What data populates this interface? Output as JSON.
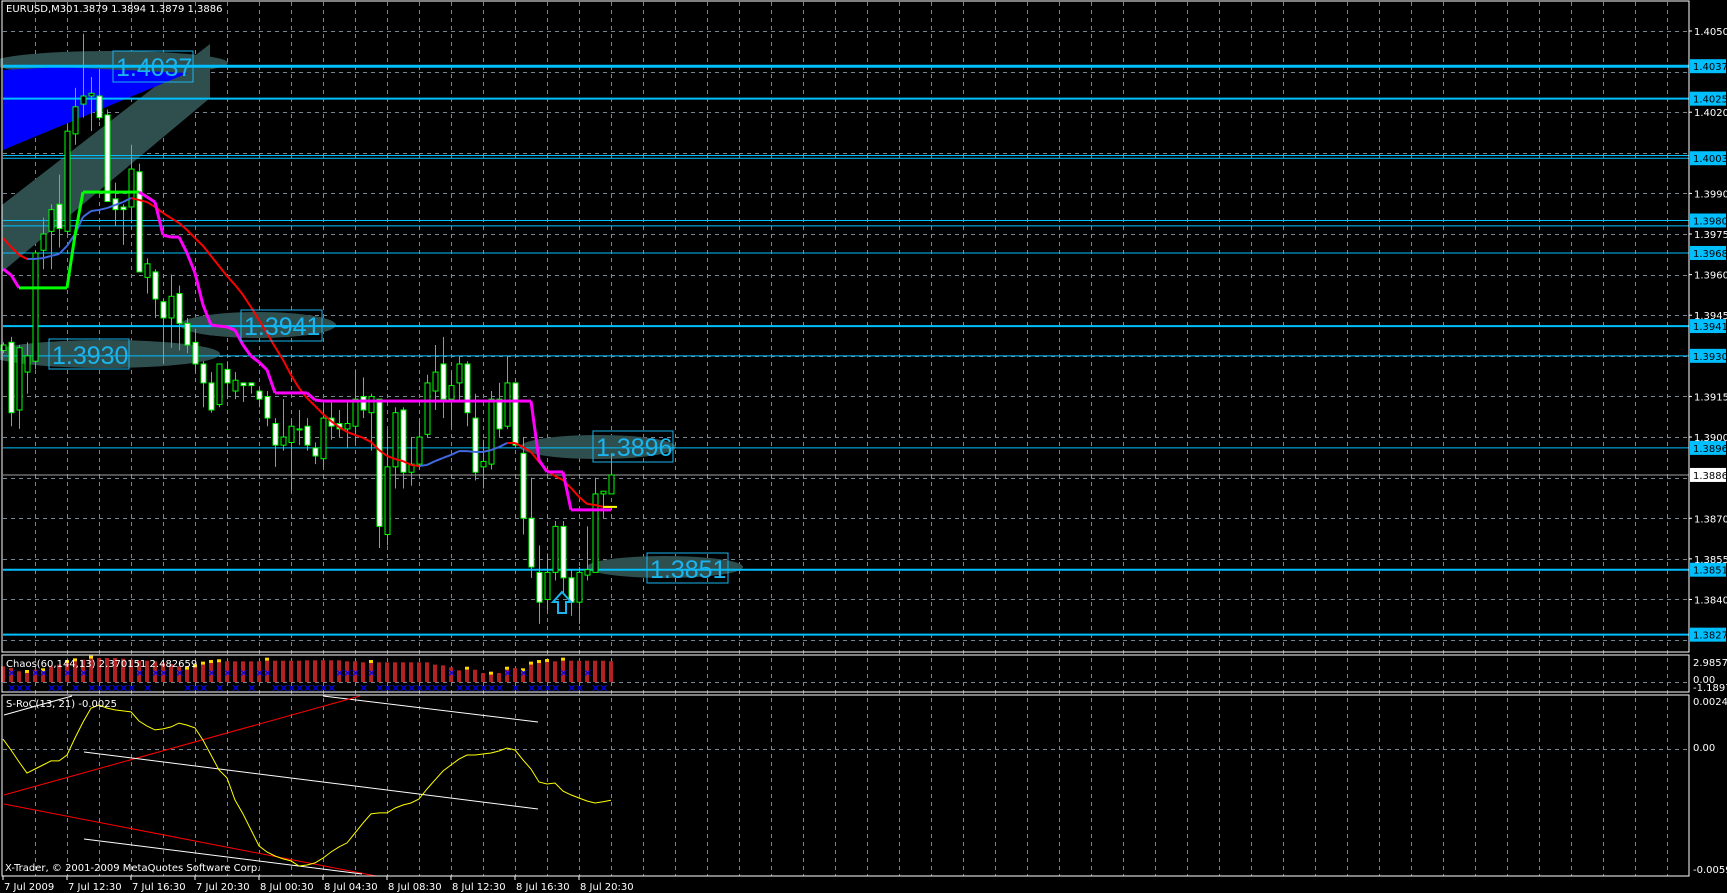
{
  "header": {
    "symbol": "EURUSD,M30",
    "ohlc": "1.3879 1.3894 1.3879 1.3886"
  },
  "colors": {
    "background": "#000000",
    "grid": "#7a8894",
    "level_line": "#00BFFF",
    "bull_wick": "#00FF00",
    "bear_body": "#FFFFFF",
    "ma_up": "#4169E1",
    "ma_down": "#FF0000",
    "step_up": "#00FF00",
    "step_down": "#FF00FF",
    "zone": "#2F4F4F",
    "fill_zone": "#0000FF",
    "chaos_bar": "#B22222",
    "chaos_signal": "#0000FF",
    "chaos_mark": "#FFD700",
    "sroc_line": "#FFFF00"
  },
  "price_axis": {
    "labels": [
      "1.4050",
      "1.4020",
      "1.3990",
      "1.3975",
      "1.3960",
      "1.3945",
      "1.3915",
      "1.3900",
      "1.3870",
      "1.3855",
      "1.3840"
    ]
  },
  "levels": [
    {
      "price": "1.4037",
      "label": "1.4037"
    },
    {
      "price": "1.4025",
      "label": "1.4025"
    },
    {
      "price": "1.4003",
      "label": "1.4003"
    },
    {
      "price": "1.3980",
      "label": "1.3980"
    },
    {
      "price": "1.3968",
      "label": "1.3968"
    },
    {
      "price": "1.3941",
      "label": "1.3941"
    },
    {
      "price": "1.3930",
      "label": "1.3930"
    },
    {
      "price": "1.3896",
      "label": "1.3896"
    },
    {
      "price": "1.3851",
      "label": "1.3851"
    },
    {
      "price": "1.3827",
      "label": "1.3827"
    }
  ],
  "bid": {
    "price": "1.3886",
    "label": "1.3886"
  },
  "chart_labels": [
    "1.4037",
    "1.3930",
    "1.3941",
    "1.3896",
    "1.3851"
  ],
  "candles": [
    [
      1.3932,
      1.3935,
      1.3931,
      1.3934
    ],
    [
      1.3935,
      1.3937,
      1.3904,
      1.3909
    ],
    [
      1.391,
      1.3934,
      1.3903,
      1.3933
    ],
    [
      1.3924,
      1.3935,
      1.3916,
      1.393
    ],
    [
      1.3928,
      1.3969,
      1.3925,
      1.3968
    ],
    [
      1.3969,
      1.3981,
      1.3962,
      1.3975
    ],
    [
      1.3976,
      1.3986,
      1.3962,
      1.3984
    ],
    [
      1.3986,
      1.3997,
      1.397,
      1.3977
    ],
    [
      1.3976,
      1.4015,
      1.3975,
      1.4013
    ],
    [
      1.4012,
      1.4029,
      1.4008,
      1.4022
    ],
    [
      1.4023,
      1.4049,
      1.4018,
      1.4026
    ],
    [
      1.4026,
      1.4033,
      1.4013,
      1.4027
    ],
    [
      1.4026,
      1.4036,
      1.4017,
      1.4018
    ],
    [
      1.4019,
      1.4021,
      1.3987,
      1.3987
    ],
    [
      1.3988,
      1.3994,
      1.3978,
      1.3984
    ],
    [
      1.3985,
      1.3986,
      1.3971,
      1.3984
    ],
    [
      1.3985,
      1.4008,
      1.3979,
      1.3999
    ],
    [
      1.3998,
      1.4001,
      1.3961,
      1.3961
    ],
    [
      1.3959,
      1.3966,
      1.3953,
      1.3964
    ],
    [
      1.3961,
      1.3962,
      1.3944,
      1.3951
    ],
    [
      1.395,
      1.3951,
      1.3927,
      1.3944
    ],
    [
      1.3944,
      1.396,
      1.3933,
      1.3952
    ],
    [
      1.3953,
      1.3956,
      1.3932,
      1.3942
    ],
    [
      1.3942,
      1.3944,
      1.3931,
      1.3934
    ],
    [
      1.3935,
      1.394,
      1.3924,
      1.3927
    ],
    [
      1.3927,
      1.3928,
      1.3911,
      1.392
    ],
    [
      1.392,
      1.3924,
      1.3909,
      1.391
    ],
    [
      1.3912,
      1.3927,
      1.3911,
      1.3927
    ],
    [
      1.3925,
      1.3928,
      1.3914,
      1.392
    ],
    [
      1.3917,
      1.3924,
      1.3914,
      1.3921
    ],
    [
      1.392,
      1.392,
      1.3913,
      1.3919
    ],
    [
      1.392,
      1.392,
      1.3916,
      1.3919
    ],
    [
      1.3917,
      1.3918,
      1.3911,
      1.3914
    ],
    [
      1.3915,
      1.3917,
      1.3904,
      1.3907
    ],
    [
      1.3905,
      1.3907,
      1.3889,
      1.3897
    ],
    [
      1.3897,
      1.3914,
      1.3895,
      1.39
    ],
    [
      1.3898,
      1.3906,
      1.388,
      1.3904
    ],
    [
      1.3903,
      1.391,
      1.3897,
      1.3903
    ],
    [
      1.3904,
      1.3907,
      1.3895,
      1.3897
    ],
    [
      1.3896,
      1.3898,
      1.389,
      1.3893
    ],
    [
      1.3892,
      1.3913,
      1.3889,
      1.3907
    ],
    [
      1.3907,
      1.3913,
      1.3899,
      1.3904
    ],
    [
      1.3905,
      1.391,
      1.39,
      1.3903
    ],
    [
      1.3903,
      1.3913,
      1.3896,
      1.3905
    ],
    [
      1.3904,
      1.3925,
      1.3898,
      1.3914
    ],
    [
      1.3915,
      1.3922,
      1.3907,
      1.391
    ],
    [
      1.3909,
      1.3916,
      1.3895,
      1.3915
    ],
    [
      1.3914,
      1.3914,
      1.3859,
      1.3867
    ],
    [
      1.3864,
      1.3903,
      1.386,
      1.3889
    ],
    [
      1.3889,
      1.3911,
      1.3881,
      1.3909
    ],
    [
      1.391,
      1.3911,
      1.3881,
      1.3887
    ],
    [
      1.3887,
      1.39,
      1.3882,
      1.389
    ],
    [
      1.389,
      1.3907,
      1.3888,
      1.39
    ],
    [
      1.3901,
      1.3923,
      1.39,
      1.392
    ],
    [
      1.3917,
      1.3934,
      1.391,
      1.3924
    ],
    [
      1.3927,
      1.3937,
      1.3907,
      1.3914
    ],
    [
      1.3914,
      1.3924,
      1.3904,
      1.3919
    ],
    [
      1.392,
      1.393,
      1.3913,
      1.3927
    ],
    [
      1.3927,
      1.3928,
      1.3904,
      1.3909
    ],
    [
      1.3907,
      1.3916,
      1.3884,
      1.3887
    ],
    [
      1.3889,
      1.3899,
      1.3881,
      1.3891
    ],
    [
      1.389,
      1.3917,
      1.3888,
      1.3914
    ],
    [
      1.3914,
      1.392,
      1.39,
      1.3903
    ],
    [
      1.3904,
      1.393,
      1.3903,
      1.392
    ],
    [
      1.392,
      1.392,
      1.3896,
      1.3897
    ],
    [
      1.3894,
      1.39,
      1.3864,
      1.387
    ],
    [
      1.387,
      1.3885,
      1.3848,
      1.3852
    ],
    [
      1.385,
      1.386,
      1.3831,
      1.3839
    ],
    [
      1.384,
      1.3857,
      1.3836,
      1.385
    ],
    [
      1.385,
      1.3869,
      1.3847,
      1.3867
    ],
    [
      1.3867,
      1.3869,
      1.3842,
      1.3848
    ],
    [
      1.3848,
      1.3851,
      1.3834,
      1.3839
    ],
    [
      1.3839,
      1.3852,
      1.3831,
      1.385
    ],
    [
      1.3849,
      1.3867,
      1.3847,
      1.3851
    ],
    [
      1.385,
      1.3885,
      1.385,
      1.3879
    ],
    [
      1.3879,
      1.388,
      1.387,
      1.388
    ],
    [
      1.3879,
      1.3894,
      1.3879,
      1.3886
    ]
  ],
  "moving_average": [
    1.39735,
    1.39702,
    1.39673,
    1.39658,
    1.39658,
    1.39661,
    1.39669,
    1.39676,
    1.39706,
    1.3975,
    1.39813,
    1.39835,
    1.39839,
    1.39846,
    1.39857,
    1.39868,
    1.39883,
    1.39876,
    1.39868,
    1.3985,
    1.39828,
    1.39809,
    1.39791,
    1.39765,
    1.39735,
    1.39706,
    1.39669,
    1.39632,
    1.39595,
    1.39562,
    1.39525,
    1.3948,
    1.39432,
    1.39384,
    1.39333,
    1.39285,
    1.39229,
    1.39181,
    1.39144,
    1.39115,
    1.39085,
    1.39059,
    1.39037,
    1.39019,
    1.39008,
    1.38997,
    1.38982,
    1.38952,
    1.3893,
    1.38919,
    1.38911,
    1.38897,
    1.38893,
    1.38897,
    1.38911,
    1.38923,
    1.38934,
    1.38948,
    1.38948,
    1.38945,
    1.38945,
    1.38952,
    1.38963,
    1.38978,
    1.38978,
    1.38963,
    1.38945,
    1.38908,
    1.38878,
    1.38856,
    1.38841,
    1.38812,
    1.38779,
    1.38753,
    1.38749,
    1.38742,
    1.38742
  ],
  "step_line": {
    "values": [
      1.39621,
      1.39599,
      1.39551,
      1.39551,
      1.39551,
      1.39551,
      1.39551,
      1.39551,
      1.39551,
      1.39746,
      1.39905,
      1.39905,
      1.39905,
      1.39905,
      1.39905,
      1.39905,
      1.39905,
      1.39905,
      1.39887,
      1.39868,
      1.39746,
      1.39739,
      1.39739,
      1.3968,
      1.39606,
      1.39488,
      1.39414,
      1.3941,
      1.39407,
      1.39395,
      1.3934,
      1.39299,
      1.39277,
      1.39248,
      1.39163,
      1.39163,
      1.39163,
      1.39163,
      1.39163,
      1.39137,
      1.39133,
      1.39133,
      1.39133,
      1.39133,
      1.39133,
      1.39133,
      1.39133,
      1.39133,
      1.39133,
      1.39133,
      1.39133,
      1.39133,
      1.39133,
      1.39133,
      1.39133,
      1.39133,
      1.39133,
      1.39133,
      1.39133,
      1.39133,
      1.39133,
      1.39133,
      1.39133,
      1.39133,
      1.39133,
      1.39133,
      1.39133,
      1.38915,
      1.38871,
      1.38871,
      1.38871,
      1.38731,
      1.38731,
      1.38731,
      1.38731,
      1.38731,
      1.38731
    ],
    "up_from": 3,
    "up_to": 17
  },
  "signal_arrow": {
    "icon": "up-arrow-icon",
    "candle": 69
  },
  "chaos": {
    "label": "Chaos(60,144,13) 2.370151 2.482659",
    "axis": [
      "2.98577",
      "0.00",
      "-1.18979"
    ],
    "values": [
      1.95,
      1.74,
      1.33,
      1.12,
      1.53,
      1.33,
      1.95,
      2.16,
      2.36,
      2.57,
      2.78,
      2.9,
      2.99,
      2.99,
      2.99,
      2.9,
      2.78,
      2.65,
      2.65,
      2.57,
      2.36,
      2.24,
      1.95,
      1.53,
      1.82,
      2.16,
      2.36,
      2.45,
      2.57,
      2.57,
      2.57,
      2.57,
      2.57,
      2.65,
      2.65,
      2.65,
      2.65,
      2.65,
      2.7,
      2.7,
      2.7,
      2.7,
      2.7,
      2.57,
      2.57,
      2.45,
      2.36,
      2.45,
      2.45,
      2.45,
      2.45,
      2.45,
      2.45,
      2.45,
      2.16,
      2.07,
      1.82,
      1.45,
      1.53,
      1.53,
      1.12,
      0.91,
      1.12,
      1.53,
      1.74,
      1.33,
      2.16,
      2.36,
      2.49,
      2.57,
      2.65,
      2.65,
      2.65,
      2.65,
      2.65,
      2.65,
      2.57
    ],
    "marks": [
      3,
      5,
      8,
      9,
      11,
      23,
      24,
      25,
      26,
      27,
      33,
      46,
      58,
      61,
      63,
      65,
      66,
      67,
      68,
      70
    ],
    "signals_above": [
      1,
      4,
      5,
      8,
      10,
      17,
      19,
      20,
      22,
      26,
      28,
      30,
      32,
      33,
      42,
      43,
      44,
      46,
      56,
      63,
      65,
      70,
      73
    ],
    "signals_below": [
      1,
      2,
      3,
      6,
      7,
      9,
      11,
      12,
      13,
      14,
      15,
      16,
      18,
      23,
      24,
      25,
      27,
      29,
      31,
      34,
      35,
      36,
      37,
      38,
      39,
      40,
      41,
      45,
      47,
      48,
      49,
      50,
      51,
      52,
      53,
      54,
      55,
      57,
      58,
      59,
      60,
      61,
      62,
      64,
      66,
      67,
      68,
      69,
      71,
      72,
      74,
      75
    ]
  },
  "sroc": {
    "label": "S-RoC(13, 21) -0.0025",
    "axis": [
      "0.0024",
      "0.00",
      "-0.0059"
    ],
    "values": [
      0.00052,
      -2e-05,
      -0.00061,
      -0.00116,
      -0.00096,
      -0.00076,
      -0.00056,
      -0.00056,
      -0.00027,
      0.00057,
      0.00136,
      0.00205,
      0.0022,
      0.00205,
      0.00196,
      0.00191,
      0.00186,
      0.00141,
      0.00116,
      0.00097,
      0.00102,
      0.00112,
      0.00131,
      0.00121,
      0.00107,
      0.00047,
      -0.00027,
      -0.00101,
      -0.0014,
      -0.00249,
      -0.00318,
      -0.00397,
      -0.00476,
      -0.00506,
      -0.00526,
      -0.0054,
      -0.0055,
      -0.00575,
      -0.0057,
      -0.0056,
      -0.00536,
      -0.00506,
      -0.00481,
      -0.00461,
      -0.00412,
      -0.00363,
      -0.00318,
      -0.00313,
      -0.00313,
      -0.00289,
      -0.00274,
      -0.00264,
      -0.00244,
      -0.00195,
      -0.0015,
      -0.00106,
      -0.00076,
      -0.00047,
      -0.00027,
      -0.00027,
      -0.00022,
      -0.00017,
      -7e-05,
      8e-05,
      -2e-05,
      -0.00051,
      -0.00096,
      -0.0016,
      -0.0017,
      -0.00165,
      -0.00205,
      -0.00224,
      -0.00239,
      -0.00254,
      -0.00264,
      -0.00258,
      -0.0025
    ]
  },
  "time_axis": [
    "7 Jul 2009",
    "7 Jul 12:30",
    "7 Jul 16:30",
    "7 Jul 20:30",
    "8 Jul 00:30",
    "8 Jul 04:30",
    "8 Jul 08:30",
    "8 Jul 12:30",
    "8 Jul 16:30",
    "8 Jul 20:30"
  ],
  "copyright": "X-Trader, © 2001-2009 MetaQuotes Software Corp."
}
